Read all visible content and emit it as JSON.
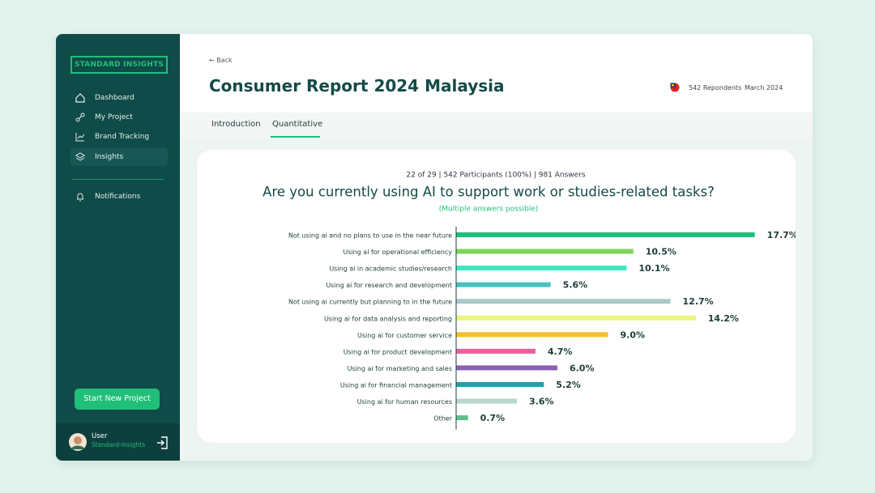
{
  "sidebar": {
    "brand": "STANDARD INSIGHTS",
    "nav": [
      "Dashboard",
      "My Project",
      "Brand Tracking",
      "Insights"
    ],
    "notifications": "Notifications",
    "button": "Start New Project",
    "user": {
      "name": "User",
      "org": "Standard-Insights"
    }
  },
  "header": {
    "back": "Back",
    "title": "Consumer Report 2024 Malaysia",
    "respondents": "542 Repondents",
    "date": "March 2024"
  },
  "tabs": [
    "Introduction",
    "Quantitative"
  ],
  "chart_data": {
    "type": "bar",
    "orientation": "horizontal",
    "meta": "22 of 29 | 542 Participants (100%) | 981 Answers",
    "title": "Are you currently using AI to support work or studies-related tasks?",
    "subtitle": "(Multiple answers possible)",
    "categories": [
      "Not using ai and no plans to use in the near future",
      "Using ai for operational efficiency",
      "Using ai in academic studies/research",
      "Using ai for research and development",
      "Not using ai currently but planning to in the future",
      "Using ai for data analysis and reporting",
      "Using ai for customer service",
      "Using ai for product development",
      "Using ai for marketing and sales",
      "Using ai for financial management",
      "Using ai for human resources",
      "Other"
    ],
    "values": [
      17.7,
      10.5,
      10.1,
      5.6,
      12.7,
      14.2,
      9.0,
      4.7,
      6.0,
      5.2,
      3.6,
      0.7
    ],
    "value_labels": [
      "17.7%",
      "10.5%",
      "10.1%",
      "5.6%",
      "12.7%",
      "14.2%",
      "9.0%",
      "4.7%",
      "6.0%",
      "5.2%",
      "3.6%",
      "0.7%"
    ],
    "colors": [
      "#1fbf79",
      "#7fd35a",
      "#3fe6bf",
      "#4cbfbf",
      "#abc9c8",
      "#e9f57c",
      "#f3bf2c",
      "#e8619b",
      "#8a60b4",
      "#1ba4a8",
      "#b9d5cd",
      "#5fbf8c"
    ],
    "xlim": [
      0,
      20.5
    ]
  }
}
